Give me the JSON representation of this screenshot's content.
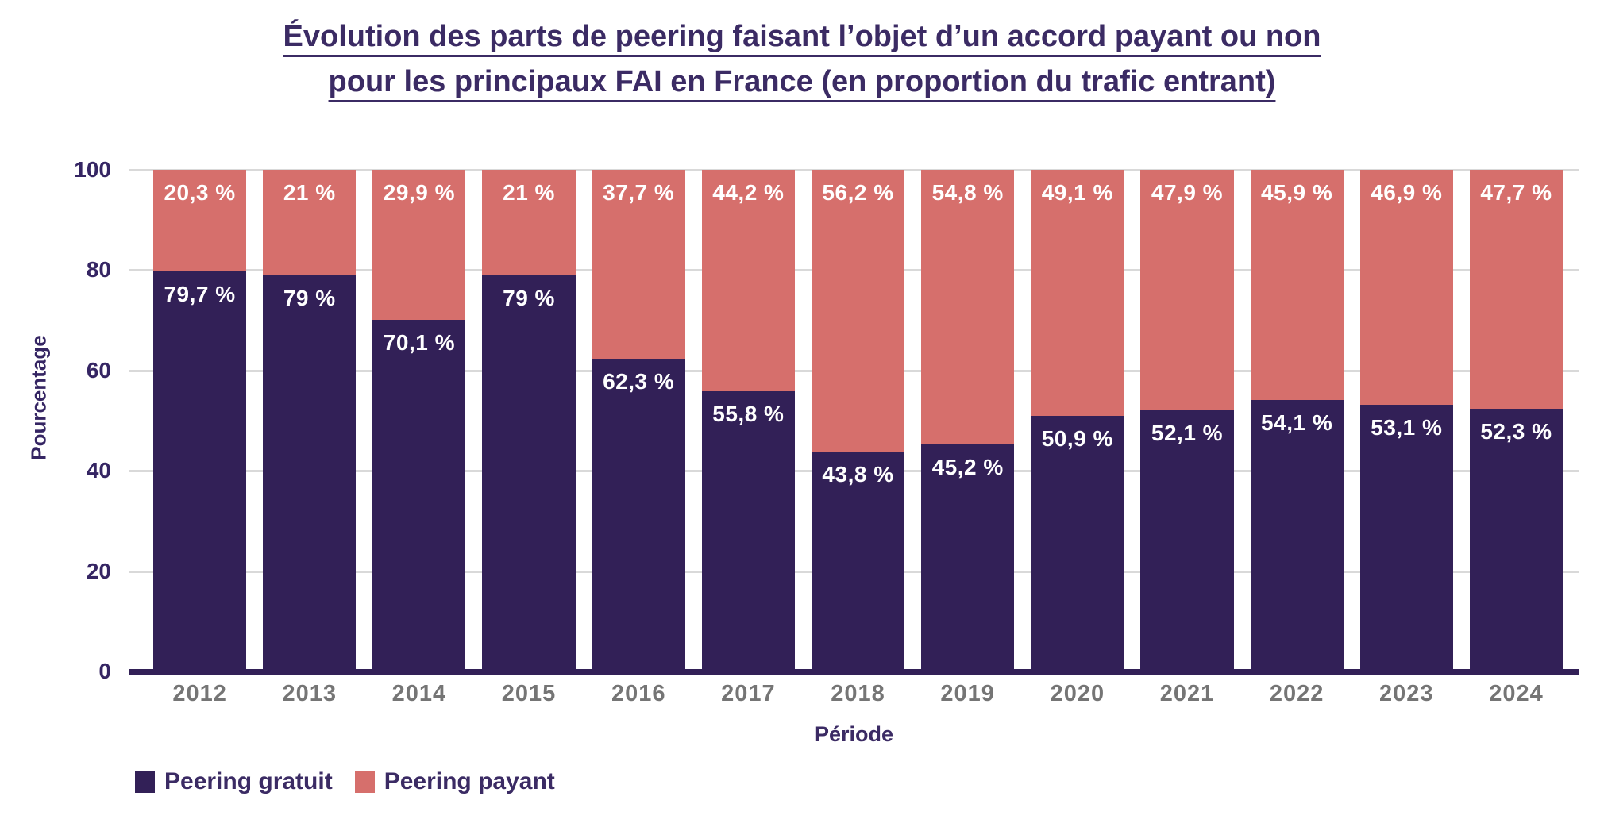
{
  "colors": {
    "background": "#ffffff",
    "title_text": "#3b2b64",
    "axis_text": "#352563",
    "x_tick_text": "#757575",
    "gridline": "#d9d9d9",
    "axis_line": "#322057",
    "bar_label_text": "#ffffff"
  },
  "chart_data": {
    "type": "bar",
    "stacked": true,
    "title": "Évolution des parts de peering faisant l’objet d’un accord payant ou non pour les principaux FAI en France (en proportion du trafic entrant)",
    "title_lines": [
      "Évolution des parts de peering faisant l’objet d’un accord payant ou non",
      "pour les principaux FAI en France (en proportion du trafic entrant)"
    ],
    "xlabel": "Période",
    "ylabel": "Pourcentage",
    "categories": [
      "2012",
      "2013",
      "2014",
      "2015",
      "2016",
      "2017",
      "2018",
      "2019",
      "2020",
      "2021",
      "2022",
      "2023",
      "2024"
    ],
    "series": [
      {
        "name": "Peering gratuit",
        "color": "#322057",
        "values": [
          79.7,
          79,
          70.1,
          79,
          62.3,
          55.8,
          43.8,
          45.2,
          50.9,
          52.1,
          54.1,
          53.1,
          52.3
        ],
        "labels": [
          "79,7 %",
          "79 %",
          "70,1 %",
          "79 %",
          "62,3 %",
          "55,8 %",
          "43,8 %",
          "45,2 %",
          "50,9 %",
          "52,1 %",
          "54,1 %",
          "53,1 %",
          "52,3 %"
        ]
      },
      {
        "name": "Peering payant",
        "color": "#d66f6c",
        "values": [
          20.3,
          21,
          29.9,
          21,
          37.7,
          44.2,
          56.2,
          54.8,
          49.1,
          47.9,
          45.9,
          46.9,
          47.7
        ],
        "labels": [
          "20,3 %",
          "21 %",
          "29,9 %",
          "21 %",
          "37,7 %",
          "44,2 %",
          "56,2 %",
          "54,8 %",
          "49,1 %",
          "47,9 %",
          "45,9 %",
          "46,9 %",
          "47,7 %"
        ]
      }
    ],
    "ylim": [
      0,
      100
    ],
    "yticks": [
      0,
      20,
      40,
      60,
      80,
      100
    ],
    "grid": true,
    "legend": {
      "position": "bottom-left"
    }
  }
}
